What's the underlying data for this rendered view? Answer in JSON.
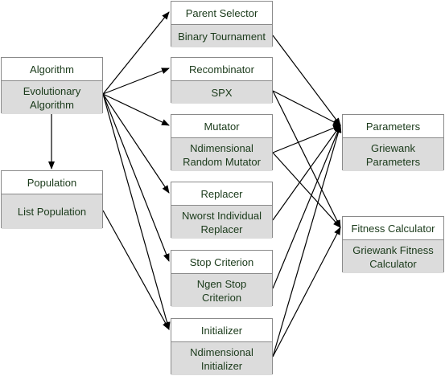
{
  "nodes": {
    "algorithm": {
      "title": "Algorithm",
      "body": "Evolutionary\nAlgorithm"
    },
    "population": {
      "title": "Population",
      "body": "List Population"
    },
    "parent_selector": {
      "title": "Parent Selector",
      "body": "Binary Tournament"
    },
    "recombinator": {
      "title": "Recombinator",
      "body": "SPX"
    },
    "mutator": {
      "title": "Mutator",
      "body": "Ndimensional\nRandom Mutator"
    },
    "replacer": {
      "title": "Replacer",
      "body": "Nworst Individual\nReplacer"
    },
    "stop_criterion": {
      "title": "Stop Criterion",
      "body": "Ngen Stop\nCriterion"
    },
    "initializer": {
      "title": "Initializer",
      "body": "Ndimensional\nInitializer"
    },
    "parameters": {
      "title": "Parameters",
      "body": "Griewank\nParameters"
    },
    "fitness_calculator": {
      "title": "Fitness Calculator",
      "body": "Griewank Fitness\nCalculator"
    }
  },
  "edges": [
    [
      "algorithm",
      "population"
    ],
    [
      "algorithm",
      "parent_selector"
    ],
    [
      "algorithm",
      "recombinator"
    ],
    [
      "algorithm",
      "mutator"
    ],
    [
      "algorithm",
      "replacer"
    ],
    [
      "algorithm",
      "stop_criterion"
    ],
    [
      "algorithm",
      "initializer"
    ],
    [
      "population",
      "initializer"
    ],
    [
      "parent_selector",
      "parameters"
    ],
    [
      "recombinator",
      "parameters"
    ],
    [
      "recombinator",
      "fitness_calculator"
    ],
    [
      "mutator",
      "parameters"
    ],
    [
      "mutator",
      "fitness_calculator"
    ],
    [
      "replacer",
      "parameters"
    ],
    [
      "stop_criterion",
      "parameters"
    ],
    [
      "initializer",
      "parameters"
    ],
    [
      "initializer",
      "fitness_calculator"
    ]
  ],
  "colors": {
    "edge": "#000000",
    "box_border": "#8a8a8a",
    "body_fill": "#dcdcdc",
    "text": "#1a3a1a"
  }
}
